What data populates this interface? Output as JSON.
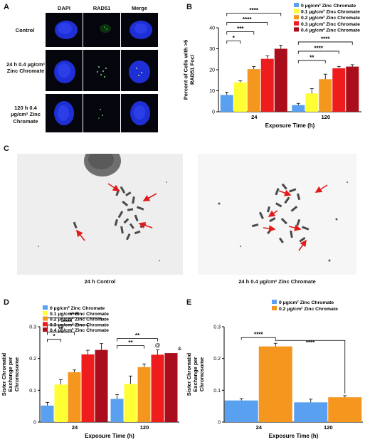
{
  "panels": {
    "A": {
      "letter": "A",
      "col_headers": [
        "DAPI",
        "RAD51",
        "Merge"
      ],
      "row_labels": [
        "Control",
        "24 h 0.4 µg/cm² Zinc Chromate",
        "120 h 0.4 µg/cm² Zinc Chromate"
      ]
    },
    "B": {
      "letter": "B"
    },
    "C": {
      "letter": "C",
      "captions": [
        "24 h Control",
        "24 h 0.4 µg/cm² Zinc Chromate"
      ]
    },
    "D": {
      "letter": "D"
    },
    "E": {
      "letter": "E"
    }
  },
  "colors": {
    "c0": "#5aa0f0",
    "c01": "#ffff33",
    "c02": "#f5961e",
    "c03": "#ee1c1c",
    "c04": "#aa0d1b",
    "nucleus": "#1f2fd6",
    "arrow": "#e01b1b"
  },
  "chart_data": [
    {
      "id": "B",
      "type": "bar",
      "ylabel": "Percent of Cells with >5 RAD51 Foci",
      "xlabel": "Exposure Time (h)",
      "ylim": [
        0,
        40
      ],
      "yticks": [
        0,
        10,
        20,
        30,
        40
      ],
      "categories": [
        "24",
        "120"
      ],
      "legend_position": "top-right",
      "series": [
        {
          "name": "0 µg/cm² Zinc Chromate",
          "values": [
            8.0,
            3.2
          ],
          "errors": [
            1.3,
            0.8
          ]
        },
        {
          "name": "0.1 µg/cm² Zinc Chromate",
          "values": [
            14.0,
            8.7
          ],
          "errors": [
            0.7,
            2.3
          ]
        },
        {
          "name": "0.2 µg/cm² Zinc Chromate",
          "values": [
            20.3,
            15.5
          ],
          "errors": [
            1.2,
            2.4
          ]
        },
        {
          "name": "0.3 µg/cm² Zinc Chromate",
          "values": [
            25.2,
            20.7
          ],
          "errors": [
            1.4,
            0.9
          ]
        },
        {
          "name": "0.4 µg/cm² Zinc Chromate",
          "values": [
            30.0,
            21.5
          ],
          "errors": [
            1.7,
            0.9
          ]
        }
      ],
      "annotations": [
        {
          "group": 0,
          "from": 0,
          "to": 1,
          "label": "*"
        },
        {
          "group": 0,
          "from": 0,
          "to": 2,
          "label": "***"
        },
        {
          "group": 0,
          "from": 0,
          "to": 3,
          "label": "****"
        },
        {
          "group": 0,
          "from": 0,
          "to": 4,
          "label": "****"
        },
        {
          "group": 1,
          "from": 0,
          "to": 2,
          "label": "**"
        },
        {
          "group": 1,
          "from": 0,
          "to": 3,
          "label": "****"
        },
        {
          "group": 1,
          "from": 0,
          "to": 4,
          "label": "****"
        }
      ]
    },
    {
      "id": "D",
      "type": "bar",
      "ylabel": "Sister Chromatid Exchange per Chromosome",
      "xlabel": "Exposure Time (h)",
      "ylim": [
        0,
        0.3
      ],
      "yticks": [
        0.0,
        0.1,
        0.2,
        0.3
      ],
      "ytick_labels": [
        "0",
        "0.1",
        "0.2",
        "0.3"
      ],
      "categories": [
        "24",
        "120"
      ],
      "legend_position": "top-left",
      "series": [
        {
          "name": "0 µg/cm² Zinc Chromate",
          "values": [
            0.052,
            0.073
          ],
          "errors": [
            0.01,
            0.013
          ]
        },
        {
          "name": "0.1 µg/cm² Zinc Chromate",
          "values": [
            0.118,
            0.12
          ],
          "errors": [
            0.015,
            0.025
          ]
        },
        {
          "name": "0.2 µg/cm² Zinc Chromate",
          "values": [
            0.157,
            0.173
          ],
          "errors": [
            0.007,
            0.01
          ]
        },
        {
          "name": "0.3 µg/cm² Zinc Chromate",
          "values": [
            0.213,
            0.212
          ],
          "errors": [
            0.013,
            0.015
          ]
        },
        {
          "name": "0.4 µg/cm² Zinc Chromate",
          "values": [
            0.227,
            0.217
          ],
          "errors": [
            0.02,
            0.0
          ]
        }
      ],
      "annotations": [
        {
          "group": 0,
          "from": 0,
          "to": 1,
          "label": "*"
        },
        {
          "group": 0,
          "from": 0,
          "to": 2,
          "label": "**"
        },
        {
          "group": 0,
          "from": 0,
          "to": 3,
          "label": "****"
        },
        {
          "group": 0,
          "from": 0,
          "to": 4,
          "label": "****"
        },
        {
          "group": 1,
          "from": 0,
          "to": 2,
          "label": "**"
        },
        {
          "group": 1,
          "from": 0,
          "to": 3,
          "label": "**"
        }
      ],
      "bar_marks": [
        {
          "group": 1,
          "bar": 3,
          "label": "@"
        },
        {
          "group": 1,
          "bar": 4,
          "label": "&"
        }
      ]
    },
    {
      "id": "E",
      "type": "bar",
      "ylabel": "Sister Chromatid Exchange per Chromosome",
      "xlabel": "Exposure Time (h)",
      "ylim": [
        0,
        0.3
      ],
      "yticks": [
        0.0,
        0.1,
        0.2,
        0.3
      ],
      "ytick_labels": [
        "0",
        "0.1",
        "0.2",
        "0.3"
      ],
      "categories": [
        "24",
        "120"
      ],
      "legend_position": "top-right",
      "series": [
        {
          "name": "0 µg/cm² Zinc Chromate",
          "values": [
            0.068,
            0.062
          ],
          "errors": [
            0.006,
            0.01
          ]
        },
        {
          "name": "0.2 µg/cm² Zinc Chromate",
          "values": [
            0.238,
            0.078
          ],
          "errors": [
            0.01,
            0.005
          ]
        }
      ],
      "annotations": [
        {
          "type": "within",
          "group": 0,
          "from": 0,
          "to": 1,
          "label": "****"
        },
        {
          "type": "across",
          "fromGroup": 0,
          "fromBar": 1,
          "toGroup": 1,
          "toBar": 1,
          "label": "****"
        }
      ]
    }
  ]
}
